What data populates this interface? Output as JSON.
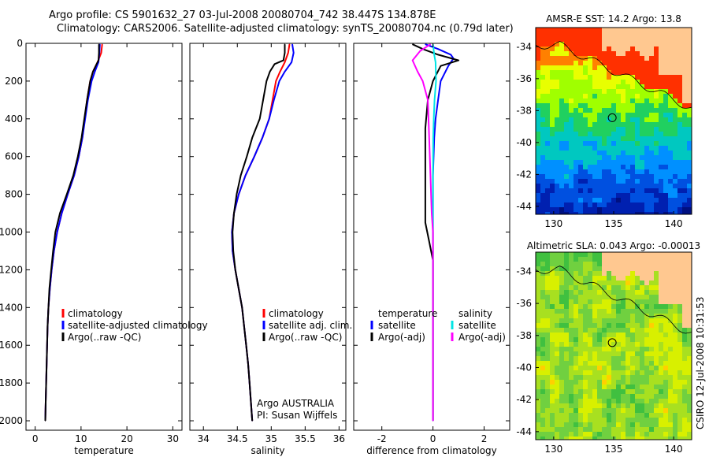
{
  "header": {
    "line1": "Argo profile: CS 5901632_27 03-Jul-2008 20080704_742 38.447S 134.878E",
    "line2": "Climatology: CARS2006. Satellite-adjusted climatology: synTS_20080704.nc (0.79d later)"
  },
  "footer_stamp": "CSIRO 12-Jul-2008 10:31:53",
  "colors": {
    "climatology": "#ff0000",
    "satellite": "#0000ff",
    "argo": "#000000",
    "sal_satellite": "#00e5e5",
    "sal_argo": "#ff00ff",
    "land": "#ffc890",
    "frame": "#000000"
  },
  "chart_data": [
    {
      "type": "line",
      "id": "temperature",
      "xlabel": "temperature",
      "ylabel": "",
      "xlim": [
        -2,
        32
      ],
      "ylim": [
        2050,
        0
      ],
      "xticks": [
        0,
        10,
        20,
        30
      ],
      "yticks": [
        0,
        200,
        400,
        600,
        800,
        1000,
        1200,
        1400,
        1600,
        1800,
        2000
      ],
      "legend": [
        "climatology",
        "satellite-adjusted climatology",
        "Argo(..raw -QC)"
      ],
      "legend_position": "lower-center",
      "series": [
        {
          "name": "climatology",
          "color": "red",
          "points": [
            [
              14.6,
              5
            ],
            [
              14.4,
              50
            ],
            [
              13.6,
              100
            ],
            [
              12.6,
              150
            ],
            [
              12.0,
              200
            ],
            [
              11.3,
              300
            ],
            [
              10.8,
              400
            ],
            [
              10.3,
              500
            ],
            [
              9.5,
              600
            ],
            [
              8.5,
              700
            ],
            [
              7.1,
              800
            ],
            [
              5.8,
              900
            ],
            [
              4.8,
              1000
            ],
            [
              4.1,
              1100
            ],
            [
              3.6,
              1200
            ],
            [
              3.2,
              1300
            ],
            [
              2.9,
              1400
            ],
            [
              2.7,
              1500
            ],
            [
              2.6,
              1600
            ],
            [
              2.5,
              1700
            ],
            [
              2.4,
              1800
            ],
            [
              2.3,
              1900
            ],
            [
              2.2,
              2000
            ]
          ]
        },
        {
          "name": "satellite-adjusted climatology",
          "color": "blue",
          "points": [
            [
              14.1,
              5
            ],
            [
              14.0,
              50
            ],
            [
              13.8,
              100
            ],
            [
              13.0,
              150
            ],
            [
              12.3,
              200
            ],
            [
              11.5,
              300
            ],
            [
              10.9,
              400
            ],
            [
              10.3,
              500
            ],
            [
              9.5,
              600
            ],
            [
              8.5,
              700
            ],
            [
              7.1,
              800
            ],
            [
              5.8,
              900
            ],
            [
              4.8,
              1000
            ],
            [
              4.1,
              1100
            ],
            [
              3.6,
              1200
            ],
            [
              3.2,
              1300
            ],
            [
              2.9,
              1400
            ],
            [
              2.7,
              1500
            ],
            [
              2.6,
              1600
            ],
            [
              2.5,
              1700
            ],
            [
              2.4,
              1800
            ],
            [
              2.3,
              1900
            ],
            [
              2.2,
              2000
            ]
          ]
        },
        {
          "name": "Argo(..raw -QC)",
          "color": "black",
          "points": [
            [
              13.9,
              5
            ],
            [
              13.9,
              50
            ],
            [
              13.8,
              90
            ],
            [
              13.2,
              120
            ],
            [
              12.6,
              150
            ],
            [
              12.0,
              200
            ],
            [
              11.3,
              300
            ],
            [
              10.7,
              400
            ],
            [
              10.1,
              500
            ],
            [
              9.3,
              600
            ],
            [
              8.3,
              700
            ],
            [
              6.9,
              800
            ],
            [
              5.4,
              900
            ],
            [
              4.4,
              1000
            ],
            [
              3.9,
              1100
            ],
            [
              3.5,
              1200
            ],
            [
              3.1,
              1300
            ],
            [
              2.9,
              1400
            ],
            [
              2.7,
              1500
            ],
            [
              2.6,
              1600
            ],
            [
              2.5,
              1700
            ],
            [
              2.4,
              1800
            ],
            [
              2.3,
              1900
            ],
            [
              2.2,
              2000
            ]
          ]
        }
      ]
    },
    {
      "type": "line",
      "id": "salinity",
      "xlabel": "salinity",
      "ylabel": "",
      "xlim": [
        33.8,
        36.1
      ],
      "ylim": [
        2050,
        0
      ],
      "xticks": [
        34,
        34.5,
        35,
        35.5,
        36
      ],
      "legend": [
        "climatology",
        "satellite adj. clim.",
        "Argo(..raw -QC)"
      ],
      "legend_position": "lower-center",
      "annotations": [
        "Argo AUSTRALIA",
        "PI: Susan Wijffels"
      ],
      "series": [
        {
          "name": "climatology",
          "color": "red",
          "points": [
            [
              35.27,
              5
            ],
            [
              35.25,
              50
            ],
            [
              35.2,
              100
            ],
            [
              35.13,
              150
            ],
            [
              35.07,
              200
            ],
            [
              35.02,
              300
            ],
            [
              34.97,
              400
            ],
            [
              34.87,
              500
            ],
            [
              34.75,
              600
            ],
            [
              34.62,
              700
            ],
            [
              34.52,
              800
            ],
            [
              34.45,
              900
            ],
            [
              34.42,
              1000
            ],
            [
              34.43,
              1100
            ],
            [
              34.47,
              1200
            ],
            [
              34.52,
              1300
            ],
            [
              34.57,
              1400
            ],
            [
              34.6,
              1500
            ],
            [
              34.63,
              1600
            ],
            [
              34.66,
              1700
            ],
            [
              34.68,
              1800
            ],
            [
              34.7,
              1900
            ],
            [
              34.72,
              2000
            ]
          ]
        },
        {
          "name": "satellite adj. clim.",
          "color": "blue",
          "points": [
            [
              35.31,
              5
            ],
            [
              35.33,
              50
            ],
            [
              35.3,
              100
            ],
            [
              35.2,
              150
            ],
            [
              35.12,
              200
            ],
            [
              35.04,
              300
            ],
            [
              34.97,
              400
            ],
            [
              34.87,
              500
            ],
            [
              34.75,
              600
            ],
            [
              34.62,
              700
            ],
            [
              34.52,
              800
            ],
            [
              34.45,
              900
            ],
            [
              34.42,
              1000
            ],
            [
              34.43,
              1100
            ],
            [
              34.47,
              1200
            ],
            [
              34.52,
              1300
            ],
            [
              34.57,
              1400
            ],
            [
              34.6,
              1500
            ],
            [
              34.63,
              1600
            ],
            [
              34.66,
              1700
            ],
            [
              34.68,
              1800
            ],
            [
              34.7,
              1900
            ],
            [
              34.72,
              2000
            ]
          ]
        },
        {
          "name": "Argo(..raw -QC)",
          "color": "black",
          "points": [
            [
              35.2,
              5
            ],
            [
              35.2,
              50
            ],
            [
              35.18,
              90
            ],
            [
              35.05,
              110
            ],
            [
              34.98,
              150
            ],
            [
              34.93,
              200
            ],
            [
              34.88,
              300
            ],
            [
              34.83,
              400
            ],
            [
              34.72,
              500
            ],
            [
              34.64,
              600
            ],
            [
              34.55,
              700
            ],
            [
              34.49,
              800
            ],
            [
              34.45,
              900
            ],
            [
              34.43,
              1000
            ],
            [
              34.44,
              1100
            ],
            [
              34.47,
              1200
            ],
            [
              34.52,
              1300
            ],
            [
              34.57,
              1400
            ],
            [
              34.6,
              1500
            ],
            [
              34.63,
              1600
            ],
            [
              34.66,
              1700
            ],
            [
              34.68,
              1800
            ],
            [
              34.7,
              1900
            ],
            [
              34.72,
              2000
            ]
          ]
        }
      ]
    },
    {
      "type": "line",
      "id": "difference",
      "xlabel": "difference from climatology",
      "ylabel": "",
      "xlim": [
        -3.1,
        3.0
      ],
      "ylim": [
        2050,
        0
      ],
      "xticks": [
        -2,
        0,
        2
      ],
      "legend_groups": [
        {
          "heading": "temperature",
          "items": [
            "satellite",
            "Argo(-adj)"
          ]
        },
        {
          "heading": "salinity",
          "items": [
            "satellite",
            "Argo(-adj)"
          ]
        }
      ],
      "legend_position": "lower-center",
      "series": [
        {
          "name": "temperature satellite",
          "color": "blue",
          "points": [
            [
              -0.3,
              5
            ],
            [
              0.2,
              30
            ],
            [
              0.7,
              60
            ],
            [
              0.8,
              80
            ],
            [
              0.6,
              120
            ],
            [
              0.3,
              200
            ],
            [
              0.2,
              300
            ],
            [
              0.1,
              400
            ],
            [
              0.05,
              500
            ],
            [
              0.0,
              700
            ],
            [
              0.0,
              900
            ],
            [
              0.0,
              1000
            ],
            [
              0.0,
              1200
            ],
            [
              0.0,
              1600
            ],
            [
              0.0,
              2000
            ]
          ]
        },
        {
          "name": "temperature Argo(-adj)",
          "color": "black",
          "points": [
            [
              -0.8,
              5
            ],
            [
              -0.4,
              30
            ],
            [
              0.2,
              60
            ],
            [
              1.0,
              90
            ],
            [
              0.3,
              120
            ],
            [
              0.0,
              200
            ],
            [
              -0.2,
              300
            ],
            [
              -0.3,
              450
            ],
            [
              -0.3,
              600
            ],
            [
              -0.3,
              700
            ],
            [
              -0.3,
              800
            ],
            [
              -0.3,
              880
            ],
            [
              -0.3,
              950
            ],
            [
              -0.15,
              1050
            ],
            [
              0.0,
              1150
            ],
            [
              0.0,
              1600
            ],
            [
              0.0,
              2000
            ]
          ]
        },
        {
          "name": "salinity satellite",
          "color": "cyan",
          "points": [
            [
              0.0,
              5
            ],
            [
              0.05,
              60
            ],
            [
              0.1,
              100
            ],
            [
              0.12,
              200
            ],
            [
              0.06,
              300
            ],
            [
              0.03,
              400
            ],
            [
              0.01,
              500
            ],
            [
              0.0,
              700
            ],
            [
              0.0,
              1000
            ],
            [
              0.0,
              1500
            ],
            [
              0.0,
              2000
            ]
          ]
        },
        {
          "name": "salinity Argo(-adj)",
          "color": "magenta",
          "points": [
            [
              -0.1,
              5
            ],
            [
              -0.5,
              40
            ],
            [
              -0.8,
              90
            ],
            [
              -0.6,
              150
            ],
            [
              -0.4,
              200
            ],
            [
              -0.2,
              300
            ],
            [
              -0.15,
              500
            ],
            [
              -0.1,
              700
            ],
            [
              -0.05,
              900
            ],
            [
              0.0,
              1000
            ],
            [
              0.0,
              1500
            ],
            [
              0.0,
              2000
            ]
          ]
        }
      ]
    },
    {
      "type": "heatmap",
      "id": "sst_map",
      "title": "AMSR-E SST: 14.2 Argo: 13.8",
      "xlim": [
        128.5,
        141.5
      ],
      "ylim": [
        -44.5,
        -32.8
      ],
      "xticks": [
        130,
        135,
        140
      ],
      "yticks": [
        -34,
        -36,
        -38,
        -40,
        -42,
        -44
      ],
      "marker_lon": 134.878,
      "marker_lat": -38.447,
      "colors": [
        "#ff3000",
        "#ff8000",
        "#e8ff00",
        "#a0ff00",
        "#20d060",
        "#00c8c0",
        "#0090ff",
        "#0050e0",
        "#0020b0",
        "#001080"
      ]
    },
    {
      "type": "heatmap",
      "id": "sla_map",
      "title": "Altimetric SLA: 0.043 Argo: -0.00013",
      "xlim": [
        128.5,
        141.5
      ],
      "ylim": [
        -44.5,
        -32.8
      ],
      "xticks": [
        130,
        135,
        140
      ],
      "yticks": [
        -34,
        -36,
        -38,
        -40,
        -42,
        -44
      ],
      "marker_lon": 134.878,
      "marker_lat": -38.447,
      "colors": [
        "#40c040",
        "#70d040",
        "#a8e020",
        "#d8f000",
        "#ffd000"
      ]
    }
  ]
}
